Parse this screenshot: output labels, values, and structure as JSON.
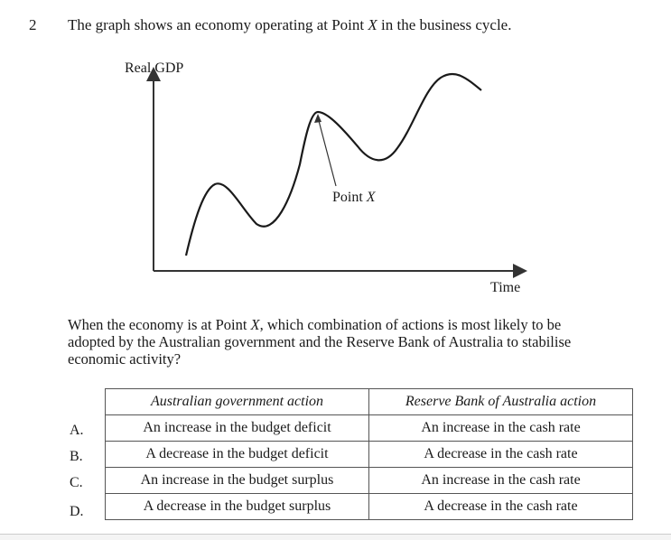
{
  "question": {
    "number": "2",
    "stem_pre": "The graph shows an economy operating at Point ",
    "stem_var": "X",
    "stem_post": " in the business cycle."
  },
  "graph": {
    "y_axis_label": "Real GDP",
    "x_axis_label": "Time",
    "point_label_pre": "Point ",
    "point_label_var": "X"
  },
  "prompt": {
    "line1_pre": "When the economy is at Point ",
    "line1_var": "X",
    "line1_post": ", which combination of actions is most likely to be",
    "line2": "adopted by the Australian government and the Reserve Bank of Australia to stabilise",
    "line3": "economic activity?"
  },
  "table": {
    "headers": [
      "Australian government action",
      "Reserve Bank of Australia action"
    ],
    "rows": [
      {
        "letter": "A.",
        "gov": "An increase in the budget deficit",
        "rba": "An increase in the cash rate"
      },
      {
        "letter": "B.",
        "gov": "A decrease in the budget deficit",
        "rba": "A decrease in the cash rate"
      },
      {
        "letter": "C.",
        "gov": "An increase in the budget surplus",
        "rba": "An increase in the cash rate"
      },
      {
        "letter": "D.",
        "gov": "A decrease in the budget surplus",
        "rba": "A decrease in the cash rate"
      }
    ]
  }
}
